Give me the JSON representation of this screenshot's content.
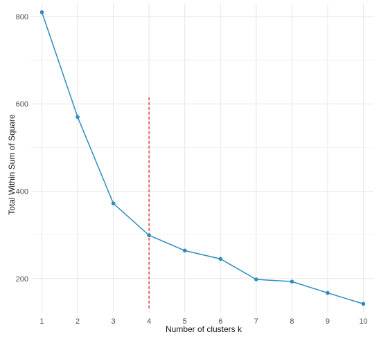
{
  "chart_data": {
    "type": "line",
    "title": "",
    "xlabel": "Number of clusters k",
    "ylabel": "Total Within Sum of Square",
    "x": [
      1,
      2,
      3,
      4,
      5,
      6,
      7,
      8,
      9,
      10
    ],
    "series": [
      {
        "values": [
          810,
          570,
          372,
          299,
          264,
          245,
          198,
          193,
          167,
          142
        ],
        "color": "#2b8cbe"
      }
    ],
    "xticks": [
      1,
      2,
      3,
      4,
      5,
      6,
      7,
      8,
      9,
      10
    ],
    "yticks": [
      200,
      400,
      600,
      800
    ],
    "xlim": [
      0.7,
      10.3
    ],
    "ylim": [
      122,
      830
    ],
    "grid": true,
    "reference_line": {
      "x": 4,
      "y_range": [
        130,
        615
      ],
      "color": "#e31a1c",
      "style": "dashed"
    }
  }
}
